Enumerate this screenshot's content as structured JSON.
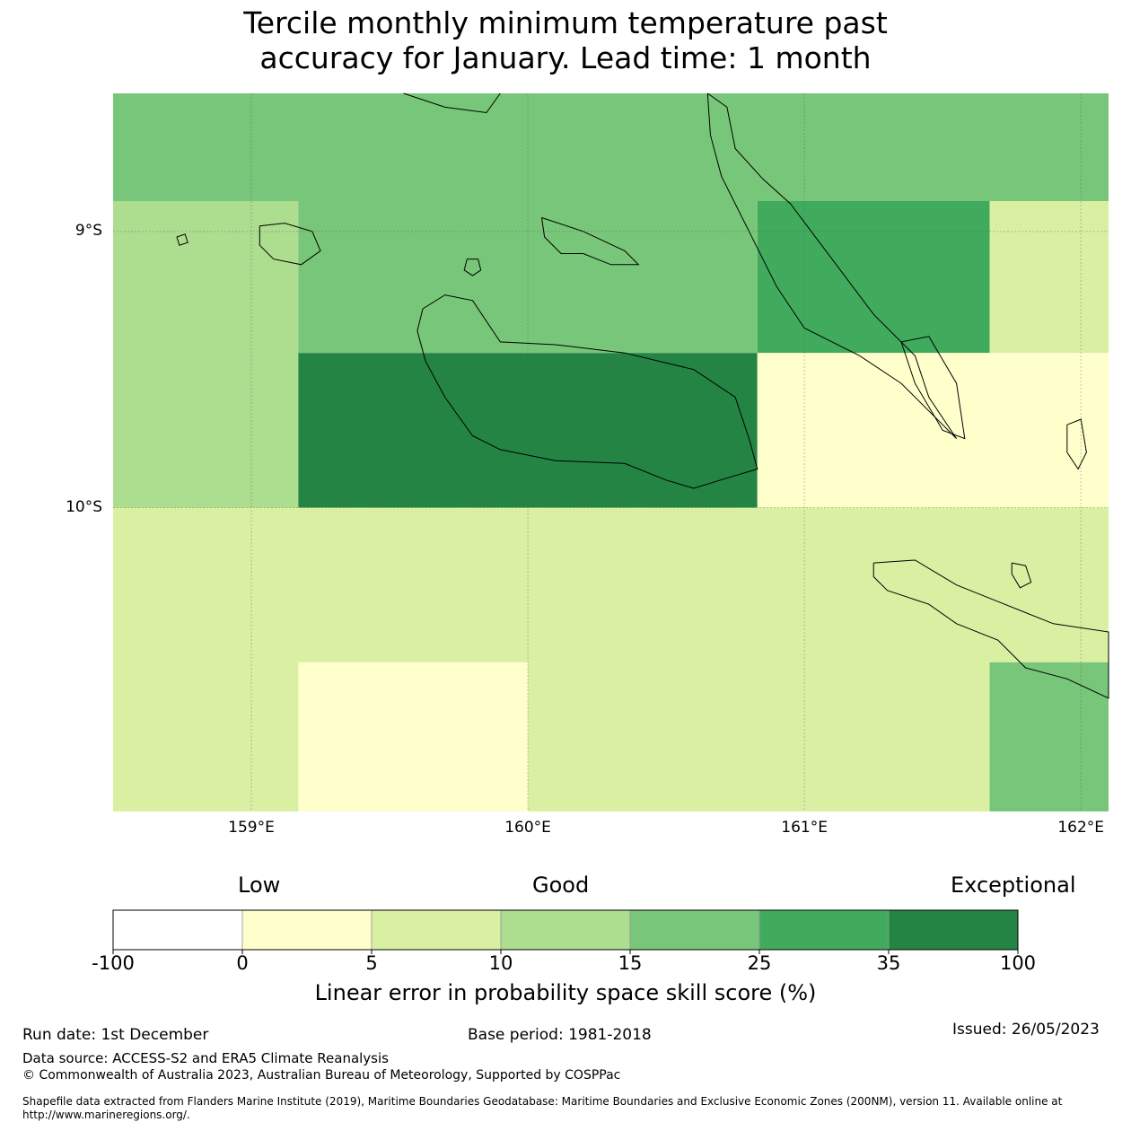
{
  "title_line1": "Tercile monthly minimum temperature past",
  "title_line2": "accuracy for January. Lead time: 1 month",
  "map": {
    "lon_range": [
      158.5,
      162.1
    ],
    "lat_range": [
      -11.1,
      -8.5
    ],
    "lat_labels": [
      {
        "value": -9,
        "text": "9°S"
      },
      {
        "value": -10,
        "text": "10°S"
      }
    ],
    "lon_labels": [
      {
        "value": 159,
        "text": "159°E"
      },
      {
        "value": 160,
        "text": "160°E"
      },
      {
        "value": 161,
        "text": "161°E"
      },
      {
        "value": 162,
        "text": "162°E"
      }
    ],
    "cells": [
      {
        "lon": [
          158.5,
          162.1
        ],
        "lat": [
          -8.89,
          -8.5
        ],
        "bin": 4
      },
      {
        "lon": [
          158.5,
          159.17
        ],
        "lat": [
          -10.0,
          -8.89
        ],
        "bin": 3
      },
      {
        "lon": [
          159.17,
          160.83
        ],
        "lat": [
          -9.44,
          -8.89
        ],
        "bin": 4
      },
      {
        "lon": [
          160.83,
          161.67
        ],
        "lat": [
          -9.44,
          -8.89
        ],
        "bin": 5
      },
      {
        "lon": [
          161.67,
          162.1
        ],
        "lat": [
          -9.44,
          -8.89
        ],
        "bin": 2
      },
      {
        "lon": [
          159.17,
          160.83
        ],
        "lat": [
          -10.0,
          -9.44
        ],
        "bin": 6
      },
      {
        "lon": [
          160.83,
          162.1
        ],
        "lat": [
          -10.0,
          -9.44
        ],
        "bin": 1
      },
      {
        "lon": [
          158.5,
          162.1
        ],
        "lat": [
          -10.56,
          -10.0
        ],
        "bin": 2
      },
      {
        "lon": [
          158.5,
          159.17
        ],
        "lat": [
          -11.1,
          -10.56
        ],
        "bin": 2
      },
      {
        "lon": [
          159.17,
          160.0
        ],
        "lat": [
          -11.1,
          -10.56
        ],
        "bin": 1
      },
      {
        "lon": [
          160.0,
          161.67
        ],
        "lat": [
          -11.1,
          -10.56
        ],
        "bin": 2
      },
      {
        "lon": [
          161.67,
          162.1
        ],
        "lat": [
          -11.1,
          -10.56
        ],
        "bin": 4
      }
    ],
    "islands": [
      {
        "name": "guadalcanal",
        "pts": [
          [
            159.62,
            -9.28
          ],
          [
            159.7,
            -9.23
          ],
          [
            159.8,
            -9.25
          ],
          [
            159.9,
            -9.4
          ],
          [
            160.1,
            -9.41
          ],
          [
            160.35,
            -9.44
          ],
          [
            160.6,
            -9.5
          ],
          [
            160.75,
            -9.6
          ],
          [
            160.8,
            -9.75
          ],
          [
            160.83,
            -9.86
          ],
          [
            160.73,
            -9.89
          ],
          [
            160.6,
            -9.93
          ],
          [
            160.5,
            -9.9
          ],
          [
            160.35,
            -9.84
          ],
          [
            160.1,
            -9.83
          ],
          [
            159.9,
            -9.79
          ],
          [
            159.8,
            -9.74
          ],
          [
            159.7,
            -9.6
          ],
          [
            159.63,
            -9.47
          ],
          [
            159.6,
            -9.36
          ],
          [
            159.62,
            -9.28
          ]
        ]
      },
      {
        "name": "malaita",
        "pts": [
          [
            160.65,
            -8.5
          ],
          [
            160.72,
            -8.55
          ],
          [
            160.75,
            -8.7
          ],
          [
            160.85,
            -8.81
          ],
          [
            160.95,
            -8.9
          ],
          [
            161.1,
            -9.1
          ],
          [
            161.25,
            -9.3
          ],
          [
            161.4,
            -9.45
          ],
          [
            161.45,
            -9.6
          ],
          [
            161.55,
            -9.75
          ],
          [
            161.5,
            -9.7
          ],
          [
            161.35,
            -9.55
          ],
          [
            161.2,
            -9.45
          ],
          [
            161.0,
            -9.35
          ],
          [
            160.9,
            -9.2
          ],
          [
            160.8,
            -9.0
          ],
          [
            160.7,
            -8.8
          ],
          [
            160.66,
            -8.65
          ],
          [
            160.65,
            -8.5
          ]
        ]
      },
      {
        "name": "small-malaita",
        "pts": [
          [
            161.35,
            -9.4
          ],
          [
            161.45,
            -9.38
          ],
          [
            161.55,
            -9.55
          ],
          [
            161.58,
            -9.75
          ],
          [
            161.5,
            -9.72
          ],
          [
            161.4,
            -9.55
          ],
          [
            161.35,
            -9.4
          ]
        ]
      },
      {
        "name": "makira",
        "pts": [
          [
            161.25,
            -10.2
          ],
          [
            161.4,
            -10.19
          ],
          [
            161.55,
            -10.28
          ],
          [
            161.7,
            -10.34
          ],
          [
            161.9,
            -10.42
          ],
          [
            162.1,
            -10.45
          ],
          [
            162.1,
            -10.69
          ],
          [
            161.95,
            -10.62
          ],
          [
            161.8,
            -10.58
          ],
          [
            161.7,
            -10.48
          ],
          [
            161.55,
            -10.42
          ],
          [
            161.45,
            -10.35
          ],
          [
            161.3,
            -10.3
          ],
          [
            161.25,
            -10.25
          ],
          [
            161.25,
            -10.2
          ]
        ]
      },
      {
        "name": "florida-islands",
        "pts": [
          [
            160.05,
            -8.95
          ],
          [
            160.2,
            -9.0
          ],
          [
            160.35,
            -9.07
          ],
          [
            160.4,
            -9.12
          ],
          [
            160.3,
            -9.12
          ],
          [
            160.2,
            -9.08
          ],
          [
            160.12,
            -9.08
          ],
          [
            160.06,
            -9.02
          ],
          [
            160.05,
            -8.95
          ]
        ]
      },
      {
        "name": "savo",
        "pts": [
          [
            159.78,
            -9.1
          ],
          [
            159.82,
            -9.1
          ],
          [
            159.83,
            -9.14
          ],
          [
            159.8,
            -9.16
          ],
          [
            159.77,
            -9.14
          ],
          [
            159.78,
            -9.1
          ]
        ]
      },
      {
        "name": "russell-islands",
        "pts": [
          [
            159.03,
            -8.98
          ],
          [
            159.12,
            -8.97
          ],
          [
            159.22,
            -9.0
          ],
          [
            159.25,
            -9.07
          ],
          [
            159.18,
            -9.12
          ],
          [
            159.08,
            -9.1
          ],
          [
            159.03,
            -9.05
          ],
          [
            159.03,
            -8.98
          ]
        ]
      },
      {
        "name": "small-islet",
        "pts": [
          [
            158.73,
            -9.02
          ],
          [
            158.76,
            -9.01
          ],
          [
            158.77,
            -9.04
          ],
          [
            158.74,
            -9.05
          ],
          [
            158.73,
            -9.02
          ]
        ]
      },
      {
        "name": "eastern-islet",
        "pts": [
          [
            161.95,
            -9.7
          ],
          [
            162.0,
            -9.68
          ],
          [
            162.02,
            -9.8
          ],
          [
            161.99,
            -9.86
          ],
          [
            161.95,
            -9.8
          ],
          [
            161.95,
            -9.7
          ]
        ]
      },
      {
        "name": "ulawa",
        "pts": [
          [
            161.75,
            -10.2
          ],
          [
            161.8,
            -10.21
          ],
          [
            161.82,
            -10.27
          ],
          [
            161.78,
            -10.29
          ],
          [
            161.75,
            -10.24
          ],
          [
            161.75,
            -10.2
          ]
        ]
      },
      {
        "name": "nggela-north",
        "pts": [
          [
            159.55,
            -8.5
          ],
          [
            159.7,
            -8.55
          ],
          [
            159.85,
            -8.57
          ],
          [
            159.9,
            -8.5
          ]
        ]
      }
    ]
  },
  "categories": {
    "low": "Low",
    "good": "Good",
    "exceptional": "Exceptional"
  },
  "colorbar": {
    "bins": [
      {
        "from": -100,
        "to": 0,
        "color": "#ffffff"
      },
      {
        "from": 0,
        "to": 5,
        "color": "#ffffcc"
      },
      {
        "from": 5,
        "to": 10,
        "color": "#d9f0a3"
      },
      {
        "from": 10,
        "to": 15,
        "color": "#addd8e"
      },
      {
        "from": 15,
        "to": 25,
        "color": "#78c679"
      },
      {
        "from": 25,
        "to": 35,
        "color": "#41ab5d"
      },
      {
        "from": 35,
        "to": 100,
        "color": "#238443"
      }
    ],
    "ticks": [
      "-100",
      "0",
      "5",
      "10",
      "15",
      "25",
      "35",
      "100"
    ],
    "label": "Linear error in probability space skill score (%)"
  },
  "footer": {
    "run_date": "Run date: 1st December",
    "base_period": "Base period: 1981-2018",
    "issued": "Issued: 26/05/2023",
    "data_source": "Data source: ACCESS-S2 and ERA5 Climate Reanalysis",
    "copyright": "© Commonwealth of Australia 2023, Australian Bureau of Meteorology, Supported by COSPPac",
    "shapefile_note": "Shapefile data extracted from Flanders Marine Institute (2019), Maritime Boundaries Geodatabase: Maritime Boundaries and Exclusive Economic Zones (200NM), version 11. Available online at http://www.marineregions.org/."
  }
}
